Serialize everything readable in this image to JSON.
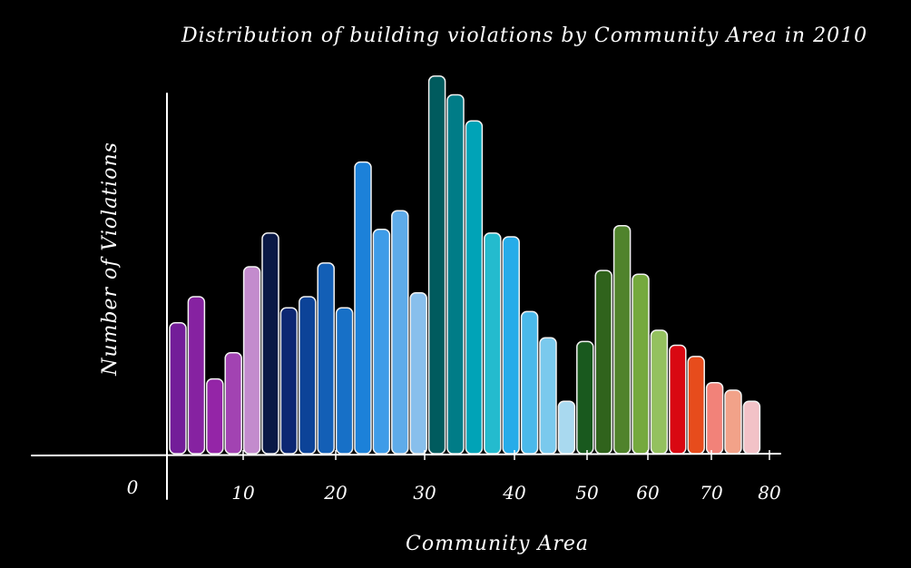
{
  "chart_data": {
    "type": "bar",
    "title": "Distribution of building violations by Community Area in 2010",
    "xlabel": "Community Area",
    "ylabel": "Number of Violations",
    "x_ticks": [
      "0",
      "10",
      "20",
      "30",
      "40",
      "50",
      "60",
      "70",
      "80"
    ],
    "xlim": [
      0,
      80
    ],
    "ylim": [
      0,
      100
    ],
    "y_ticks_shown": false,
    "grid": false,
    "legend": "none",
    "bars": [
      {
        "x": 1,
        "value": 35,
        "color": "#7a1fa2"
      },
      {
        "x": 2,
        "value": 42,
        "color": "#8e24aa"
      },
      {
        "x": 3,
        "value": 20,
        "color": "#9c27b0"
      },
      {
        "x": 4,
        "value": 27,
        "color": "#ab47bc"
      },
      {
        "x": 5,
        "value": 50,
        "color": "#ce93d8"
      },
      {
        "x": 6,
        "value": 59,
        "color": "#0b1b4a"
      },
      {
        "x": 7,
        "value": 39,
        "color": "#0d2a7a"
      },
      {
        "x": 8,
        "value": 42,
        "color": "#0d47a1"
      },
      {
        "x": 9,
        "value": 51,
        "color": "#1565c0"
      },
      {
        "x": 10,
        "value": 39,
        "color": "#1976d2"
      },
      {
        "x": 11,
        "value": 78,
        "color": "#1e88e5"
      },
      {
        "x": 12,
        "value": 60,
        "color": "#42a5f5"
      },
      {
        "x": 13,
        "value": 65,
        "color": "#64b5f6"
      },
      {
        "x": 14,
        "value": 43,
        "color": "#90caf9"
      },
      {
        "x": 15,
        "value": 101,
        "color": "#006064"
      },
      {
        "x": 16,
        "value": 96,
        "color": "#00838f"
      },
      {
        "x": 17,
        "value": 89,
        "color": "#00acc1"
      },
      {
        "x": 18,
        "value": 59,
        "color": "#26c6da"
      },
      {
        "x": 19,
        "value": 58,
        "color": "#29b6f6"
      },
      {
        "x": 20,
        "value": 38,
        "color": "#4fc3f7"
      },
      {
        "x": 21,
        "value": 31,
        "color": "#81d4fa"
      },
      {
        "x": 22,
        "value": 14,
        "color": "#b3e5fc"
      },
      {
        "x": 23,
        "value": 30,
        "color": "#1b5e20"
      },
      {
        "x": 24,
        "value": 49,
        "color": "#33691e"
      },
      {
        "x": 25,
        "value": 61,
        "color": "#558b2f"
      },
      {
        "x": 26,
        "value": 48,
        "color": "#7cb342"
      },
      {
        "x": 27,
        "value": 33,
        "color": "#9ccc65"
      },
      {
        "x": 28,
        "value": 29,
        "color": "#e50914"
      },
      {
        "x": 29,
        "value": 26,
        "color": "#f4511e"
      },
      {
        "x": 30,
        "value": 19,
        "color": "#ff8a80"
      },
      {
        "x": 31,
        "value": 17,
        "color": "#ffab91"
      },
      {
        "x": 32,
        "value": 14,
        "color": "#ffcdd2"
      }
    ]
  }
}
